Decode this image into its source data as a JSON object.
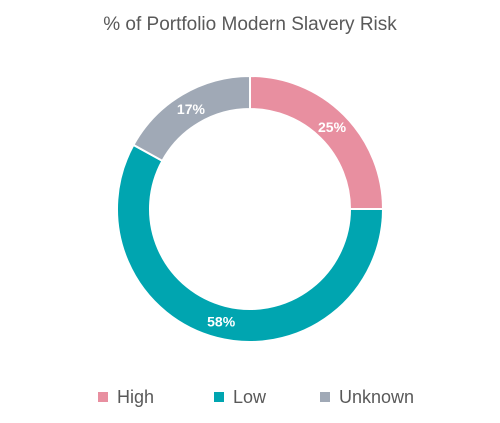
{
  "chart_data": {
    "type": "pie",
    "title": "% of Portfolio Modern Slavery Risk",
    "series": [
      {
        "name": "High",
        "value": 25,
        "label": "25%",
        "color": "#e88fa0"
      },
      {
        "name": "Low",
        "value": 58,
        "label": "58%",
        "color": "#00a5b0"
      },
      {
        "name": "Unknown",
        "value": 17,
        "label": "17%",
        "color": "#a0a9b6"
      }
    ],
    "legend_position": "bottom"
  }
}
